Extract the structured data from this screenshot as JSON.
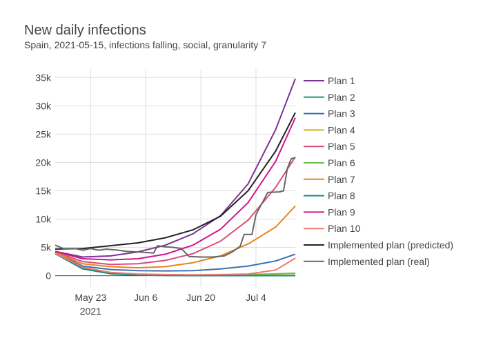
{
  "chart_data": {
    "type": "line",
    "title": "New daily infections",
    "subtitle": "Spain, 2021-05-15, infections falling, social, granularity 7",
    "xlabel": "",
    "ylabel": "",
    "x_start": "2021-05-14",
    "x_end": "2021-07-14",
    "xlim": [
      "2021-05-14",
      "2021-07-14"
    ],
    "ylim": [
      -2000,
      36500
    ],
    "x_ticks": [
      {
        "date": "2021-05-23",
        "label": "May 23",
        "sublabel": "2021"
      },
      {
        "date": "2021-06-06",
        "label": "Jun 6",
        "sublabel": ""
      },
      {
        "date": "2021-06-20",
        "label": "Jun 20",
        "sublabel": ""
      },
      {
        "date": "2021-07-04",
        "label": "Jul 4",
        "sublabel": ""
      }
    ],
    "y_ticks": [
      {
        "value": 0,
        "label": "0"
      },
      {
        "value": 5000,
        "label": "5k"
      },
      {
        "value": 10000,
        "label": "10k"
      },
      {
        "value": 15000,
        "label": "15k"
      },
      {
        "value": 20000,
        "label": "20k"
      },
      {
        "value": 25000,
        "label": "25k"
      },
      {
        "value": 30000,
        "label": "30k"
      },
      {
        "value": 35000,
        "label": "35k"
      }
    ],
    "grid": true,
    "legend_position": "right",
    "series": [
      {
        "name": "Plan 1",
        "color": "#7b3294",
        "points": [
          [
            "2021-05-14",
            4300
          ],
          [
            "2021-05-21",
            3300
          ],
          [
            "2021-05-28",
            3500
          ],
          [
            "2021-06-04",
            4200
          ],
          [
            "2021-06-11",
            5400
          ],
          [
            "2021-06-18",
            7400
          ],
          [
            "2021-06-25",
            10600
          ],
          [
            "2021-07-02",
            16200
          ],
          [
            "2021-07-09",
            25800
          ],
          [
            "2021-07-14",
            34800
          ]
        ]
      },
      {
        "name": "Plan 2",
        "color": "#1b9e77",
        "points": [
          [
            "2021-05-14",
            4000
          ],
          [
            "2021-05-21",
            1300
          ],
          [
            "2021-05-28",
            400
          ],
          [
            "2021-06-04",
            150
          ],
          [
            "2021-06-11",
            60
          ],
          [
            "2021-06-18",
            30
          ],
          [
            "2021-06-25",
            20
          ],
          [
            "2021-07-02",
            20
          ],
          [
            "2021-07-09",
            20
          ],
          [
            "2021-07-14",
            30
          ]
        ]
      },
      {
        "name": "Plan 3",
        "color": "#3b6fb6",
        "points": [
          [
            "2021-05-14",
            4100
          ],
          [
            "2021-05-21",
            1700
          ],
          [
            "2021-05-28",
            1100
          ],
          [
            "2021-06-04",
            900
          ],
          [
            "2021-06-11",
            850
          ],
          [
            "2021-06-18",
            900
          ],
          [
            "2021-06-25",
            1200
          ],
          [
            "2021-07-02",
            1700
          ],
          [
            "2021-07-09",
            2600
          ],
          [
            "2021-07-14",
            3800
          ]
        ]
      },
      {
        "name": "Plan 4",
        "color": "#d8b400",
        "points": [
          [
            "2021-05-14",
            4000
          ],
          [
            "2021-05-21",
            1400
          ],
          [
            "2021-05-28",
            500
          ],
          [
            "2021-06-04",
            200
          ],
          [
            "2021-06-11",
            120
          ],
          [
            "2021-06-18",
            100
          ],
          [
            "2021-06-25",
            120
          ],
          [
            "2021-07-02",
            180
          ],
          [
            "2021-07-09",
            280
          ],
          [
            "2021-07-14",
            400
          ]
        ]
      },
      {
        "name": "Plan 5",
        "color": "#d94c7c",
        "points": [
          [
            "2021-05-14",
            4200
          ],
          [
            "2021-05-21",
            2500
          ],
          [
            "2021-05-28",
            2000
          ],
          [
            "2021-06-04",
            2100
          ],
          [
            "2021-06-11",
            2700
          ],
          [
            "2021-06-18",
            3900
          ],
          [
            "2021-06-25",
            6100
          ],
          [
            "2021-07-02",
            9800
          ],
          [
            "2021-07-09",
            15600
          ],
          [
            "2021-07-14",
            21000
          ]
        ]
      },
      {
        "name": "Plan 6",
        "color": "#6cbf4e",
        "points": [
          [
            "2021-05-14",
            4000
          ],
          [
            "2021-05-21",
            1400
          ],
          [
            "2021-05-28",
            520
          ],
          [
            "2021-06-04",
            230
          ],
          [
            "2021-06-11",
            150
          ],
          [
            "2021-06-18",
            130
          ],
          [
            "2021-06-25",
            150
          ],
          [
            "2021-07-02",
            220
          ],
          [
            "2021-07-09",
            330
          ],
          [
            "2021-07-14",
            450
          ]
        ]
      },
      {
        "name": "Plan 7",
        "color": "#e8831a",
        "points": [
          [
            "2021-05-14",
            4100
          ],
          [
            "2021-05-21",
            2100
          ],
          [
            "2021-05-28",
            1600
          ],
          [
            "2021-06-04",
            1400
          ],
          [
            "2021-06-11",
            1600
          ],
          [
            "2021-06-18",
            2300
          ],
          [
            "2021-06-25",
            3500
          ],
          [
            "2021-07-02",
            5600
          ],
          [
            "2021-07-09",
            8600
          ],
          [
            "2021-07-14",
            12300
          ]
        ]
      },
      {
        "name": "Plan 8",
        "color": "#178a8a",
        "points": [
          [
            "2021-05-14",
            3900
          ],
          [
            "2021-05-21",
            1200
          ],
          [
            "2021-05-28",
            350
          ],
          [
            "2021-06-04",
            110
          ],
          [
            "2021-06-11",
            40
          ],
          [
            "2021-06-18",
            15
          ],
          [
            "2021-06-25",
            10
          ],
          [
            "2021-07-02",
            10
          ],
          [
            "2021-07-09",
            10
          ],
          [
            "2021-07-14",
            10
          ]
        ]
      },
      {
        "name": "Plan 9",
        "color": "#d1148e",
        "points": [
          [
            "2021-05-14",
            4300
          ],
          [
            "2021-05-21",
            3000
          ],
          [
            "2021-05-28",
            2800
          ],
          [
            "2021-06-04",
            3000
          ],
          [
            "2021-06-11",
            3800
          ],
          [
            "2021-06-18",
            5400
          ],
          [
            "2021-06-25",
            8200
          ],
          [
            "2021-07-02",
            12900
          ],
          [
            "2021-07-09",
            20200
          ],
          [
            "2021-07-14",
            27900
          ]
        ]
      },
      {
        "name": "Plan 10",
        "color": "#f07b6e",
        "points": [
          [
            "2021-05-14",
            4000
          ],
          [
            "2021-05-21",
            1500
          ],
          [
            "2021-05-28",
            600
          ],
          [
            "2021-06-04",
            300
          ],
          [
            "2021-06-11",
            200
          ],
          [
            "2021-06-18",
            170
          ],
          [
            "2021-06-25",
            200
          ],
          [
            "2021-07-02",
            300
          ],
          [
            "2021-07-09",
            1000
          ],
          [
            "2021-07-14",
            3100
          ]
        ]
      },
      {
        "name": "Implemented plan (predicted)",
        "color": "#222222",
        "points": [
          [
            "2021-05-14",
            4700
          ],
          [
            "2021-05-21",
            4800
          ],
          [
            "2021-05-28",
            5300
          ],
          [
            "2021-06-04",
            5800
          ],
          [
            "2021-06-11",
            6700
          ],
          [
            "2021-06-18",
            8100
          ],
          [
            "2021-06-25",
            10500
          ],
          [
            "2021-07-02",
            15000
          ],
          [
            "2021-07-09",
            22000
          ],
          [
            "2021-07-14",
            28800
          ]
        ]
      },
      {
        "name": "Implemented plan (real)",
        "color": "#666666",
        "points": [
          [
            "2021-05-14",
            5400
          ],
          [
            "2021-05-16",
            4800
          ],
          [
            "2021-05-19",
            4800
          ],
          [
            "2021-05-21",
            4500
          ],
          [
            "2021-05-23",
            4800
          ],
          [
            "2021-05-25",
            4500
          ],
          [
            "2021-05-27",
            4700
          ],
          [
            "2021-05-30",
            4500
          ],
          [
            "2021-06-01",
            4300
          ],
          [
            "2021-06-04",
            4200
          ],
          [
            "2021-06-06",
            4100
          ],
          [
            "2021-06-08",
            4000
          ],
          [
            "2021-06-09",
            5300
          ],
          [
            "2021-06-11",
            5100
          ],
          [
            "2021-06-13",
            5000
          ],
          [
            "2021-06-15",
            4800
          ],
          [
            "2021-06-17",
            3400
          ],
          [
            "2021-06-20",
            3300
          ],
          [
            "2021-06-23",
            3300
          ],
          [
            "2021-06-26",
            3500
          ],
          [
            "2021-06-28",
            4200
          ],
          [
            "2021-06-30",
            5200
          ],
          [
            "2021-07-01",
            7300
          ],
          [
            "2021-07-03",
            7300
          ],
          [
            "2021-07-04",
            10800
          ],
          [
            "2021-07-07",
            14700
          ],
          [
            "2021-07-10",
            14800
          ],
          [
            "2021-07-11",
            15000
          ],
          [
            "2021-07-12",
            19000
          ],
          [
            "2021-07-13",
            20700
          ],
          [
            "2021-07-14",
            20800
          ]
        ]
      }
    ]
  }
}
